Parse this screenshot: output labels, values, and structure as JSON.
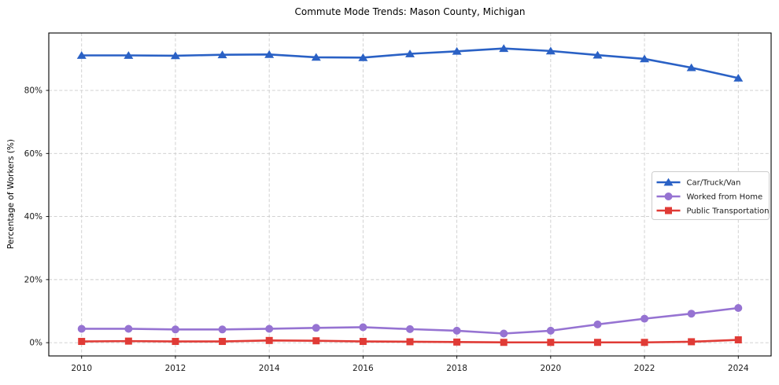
{
  "chart_data": {
    "type": "line",
    "title": "Commute Mode Trends: Mason County, Michigan",
    "xlabel": "",
    "ylabel": "Percentage of Workers (%)",
    "x": [
      2010,
      2011,
      2012,
      2013,
      2014,
      2015,
      2016,
      2017,
      2018,
      2019,
      2020,
      2021,
      2022,
      2023,
      2024
    ],
    "x_ticks": [
      2010,
      2012,
      2014,
      2016,
      2018,
      2020,
      2022,
      2024
    ],
    "x_tick_labels": [
      "2010",
      "2012",
      "2014",
      "2016",
      "2018",
      "2020",
      "2022",
      "2024"
    ],
    "y_ticks": [
      0,
      20,
      40,
      60,
      80
    ],
    "y_tick_labels": [
      "0%",
      "20%",
      "40%",
      "60%",
      "80%"
    ],
    "xlim": [
      2009.3,
      2024.7
    ],
    "ylim": [
      -4.2,
      98.2
    ],
    "grid": true,
    "grid_style": "dashed",
    "legend_position": "center right",
    "series": [
      {
        "name": "Car/Truck/Van",
        "marker": "triangle",
        "color": "#2a61c5",
        "values": [
          91.1,
          91.1,
          91.0,
          91.3,
          91.4,
          90.5,
          90.4,
          91.6,
          92.4,
          93.3,
          92.5,
          91.2,
          90.0,
          87.2,
          83.9
        ]
      },
      {
        "name": "Worked from Home",
        "marker": "circle",
        "color": "#9673d2",
        "values": [
          4.4,
          4.4,
          4.2,
          4.2,
          4.4,
          4.7,
          4.9,
          4.3,
          3.8,
          2.9,
          3.8,
          5.8,
          7.6,
          9.2,
          11.0
        ]
      },
      {
        "name": "Public Transportation",
        "marker": "square",
        "color": "#e03b36",
        "values": [
          0.4,
          0.5,
          0.4,
          0.4,
          0.7,
          0.6,
          0.4,
          0.3,
          0.2,
          0.1,
          0.1,
          0.1,
          0.1,
          0.3,
          0.9
        ]
      }
    ],
    "colors": {
      "grid": "#cccccc",
      "frame": "#000000",
      "text": "#1a1a1a",
      "legend_border": "#cccccc",
      "background": "#ffffff"
    }
  }
}
